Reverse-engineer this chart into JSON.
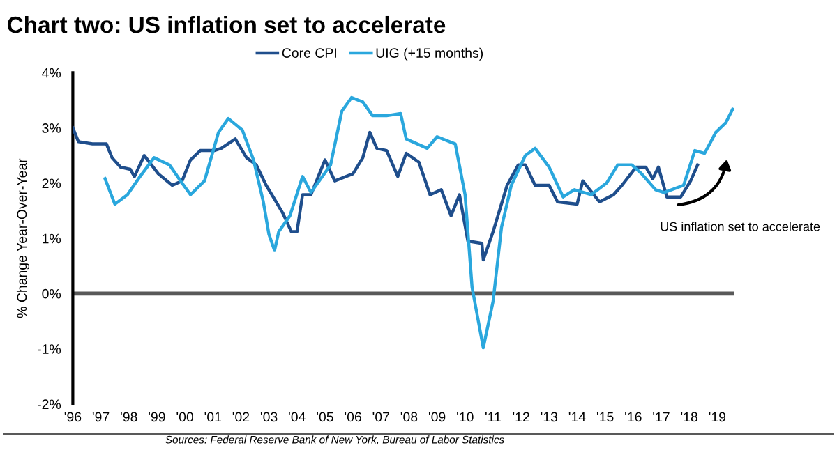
{
  "chart_data": {
    "type": "line",
    "title": "Chart two: US inflation set to accelerate",
    "ylabel": "% Change Year-Over-Year",
    "xlim": [
      1996,
      2019.6
    ],
    "xticks": [
      {
        "value": 1996,
        "label": "'96"
      },
      {
        "value": 1997,
        "label": "'97"
      },
      {
        "value": 1998,
        "label": "'98"
      },
      {
        "value": 1999,
        "label": "'99"
      },
      {
        "value": 2000,
        "label": "'00"
      },
      {
        "value": 2001,
        "label": "'01"
      },
      {
        "value": 2002,
        "label": "'02"
      },
      {
        "value": 2003,
        "label": "'03"
      },
      {
        "value": 2004,
        "label": "'04"
      },
      {
        "value": 2005,
        "label": "'05"
      },
      {
        "value": 2006,
        "label": "'06"
      },
      {
        "value": 2007,
        "label": "'07"
      },
      {
        "value": 2008,
        "label": "'08"
      },
      {
        "value": 2009,
        "label": "'09"
      },
      {
        "value": 2010,
        "label": "'10"
      },
      {
        "value": 2011,
        "label": "'11"
      },
      {
        "value": 2012,
        "label": "'12"
      },
      {
        "value": 2013,
        "label": "'13"
      },
      {
        "value": 2014,
        "label": "'14"
      },
      {
        "value": 2015,
        "label": "'15"
      },
      {
        "value": 2016,
        "label": "'16"
      },
      {
        "value": 2017,
        "label": "'17"
      },
      {
        "value": 2018,
        "label": "'18"
      },
      {
        "value": 2019,
        "label": "'19"
      }
    ],
    "ylim": [
      -2,
      4
    ],
    "yticks": [
      {
        "value": -2,
        "label": "-2%"
      },
      {
        "value": -1,
        "label": "-1%"
      },
      {
        "value": 0,
        "label": "0%"
      },
      {
        "value": 1,
        "label": "1%"
      },
      {
        "value": 2,
        "label": "2%"
      },
      {
        "value": 3,
        "label": "3%"
      },
      {
        "value": 4,
        "label": "4%"
      }
    ],
    "grid": false,
    "legend": "top",
    "marker": "none",
    "line_style": "solid",
    "ref_lines": [
      {
        "axis": "y",
        "value": 0,
        "label": null,
        "color": "#595959"
      }
    ],
    "series": [
      {
        "name": "Core CPI",
        "color": "#1f4e8c",
        "x": [
          1996.0,
          1996.2,
          1996.7,
          1997.2,
          1997.4,
          1997.7,
          1998.05,
          1998.2,
          1998.55,
          1999.05,
          1999.55,
          1999.9,
          2000.2,
          2000.55,
          2001.05,
          2001.3,
          2001.8,
          2002.2,
          2002.55,
          2002.9,
          2003.2,
          2003.5,
          2003.8,
          2004.0,
          2004.2,
          2004.5,
          2005.0,
          2005.35,
          2006.0,
          2006.35,
          2006.6,
          2006.85,
          2007.2,
          2007.6,
          2007.9,
          2008.35,
          2008.75,
          2009.15,
          2009.5,
          2009.8,
          2010.1,
          2010.6,
          2010.65,
          2011.0,
          2011.5,
          2011.9,
          2012.15,
          2012.5,
          2013.0,
          2013.3,
          2014.0,
          2014.2,
          2014.8,
          2015.3,
          2015.6,
          2016.1,
          2016.45,
          2016.7,
          2016.9,
          2017.2,
          2017.7,
          2018.05,
          2018.3
        ],
        "values": [
          3.0,
          2.75,
          2.71,
          2.71,
          2.46,
          2.29,
          2.25,
          2.12,
          2.5,
          2.17,
          1.96,
          2.04,
          2.42,
          2.59,
          2.59,
          2.63,
          2.8,
          2.46,
          2.33,
          1.96,
          1.71,
          1.45,
          1.12,
          1.12,
          1.79,
          1.79,
          2.42,
          2.04,
          2.17,
          2.46,
          2.92,
          2.63,
          2.59,
          2.12,
          2.54,
          2.38,
          1.79,
          1.88,
          1.41,
          1.79,
          0.95,
          0.91,
          0.61,
          1.12,
          1.96,
          2.33,
          2.33,
          1.96,
          1.96,
          1.66,
          1.62,
          2.04,
          1.66,
          1.79,
          1.96,
          2.29,
          2.29,
          2.08,
          2.29,
          1.75,
          1.75,
          2.04,
          2.33
        ]
      },
      {
        "name": "UIG (+15 months)",
        "color": "#2aa7dd",
        "x": [
          1997.15,
          1997.5,
          1997.95,
          1998.4,
          1998.9,
          1999.45,
          1999.9,
          2000.2,
          2000.7,
          2001.2,
          2001.55,
          2002.05,
          2002.45,
          2002.8,
          2003.0,
          2003.2,
          2003.35,
          2003.75,
          2004.2,
          2004.5,
          2005.2,
          2005.6,
          2005.95,
          2006.35,
          2006.7,
          2007.2,
          2007.7,
          2007.9,
          2008.65,
          2009.0,
          2009.65,
          2010.0,
          2010.25,
          2010.65,
          2011.0,
          2011.3,
          2011.65,
          2012.15,
          2012.5,
          2013.0,
          2013.5,
          2013.9,
          2014.5,
          2015.05,
          2015.45,
          2015.95,
          2016.3,
          2016.8,
          2017.1,
          2017.8,
          2018.2,
          2018.55,
          2018.95,
          2019.3,
          2019.55
        ],
        "values": [
          2.08,
          1.62,
          1.79,
          2.12,
          2.46,
          2.33,
          2.0,
          1.79,
          2.04,
          2.92,
          3.17,
          2.96,
          2.42,
          1.66,
          1.07,
          0.78,
          1.12,
          1.41,
          2.12,
          1.83,
          2.33,
          3.3,
          3.55,
          3.47,
          3.22,
          3.22,
          3.26,
          2.8,
          2.63,
          2.84,
          2.71,
          1.79,
          0.11,
          -0.98,
          -0.14,
          1.2,
          1.96,
          2.5,
          2.63,
          2.29,
          1.75,
          1.88,
          1.79,
          2.0,
          2.33,
          2.33,
          2.17,
          1.88,
          1.83,
          1.96,
          2.59,
          2.54,
          2.92,
          3.09,
          3.34
        ]
      }
    ],
    "annotations": [
      "US inflation set to accelerate",
      "Sources: Federal Reserve Bank of New York, Bureau of Labor Statistics"
    ]
  }
}
